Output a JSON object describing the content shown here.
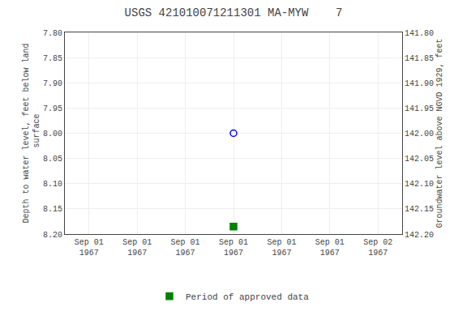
{
  "chart_data": {
    "type": "scatter",
    "title": "USGS 421010071211301 MA-MYW    7",
    "y_label": "Depth to water level, feet below land\n surface",
    "y2_label": "Groundwater level above NGVD 1929, feet",
    "categories": [
      "Sep 01\n1967",
      "Sep 01\n1967",
      "Sep 01\n1967",
      "Sep 01\n1967",
      "Sep 01\n1967",
      "Sep 01\n1967",
      "Sep 02\n1967"
    ],
    "series": [
      {
        "color": "blue",
        "marker": "circle-open",
        "values": [
          null,
          null,
          null,
          8.0,
          null,
          null,
          null
        ]
      },
      {
        "name": "Period of approved data",
        "color": "#008000",
        "marker": "square",
        "values": [
          null,
          null,
          null,
          8.185,
          null,
          null,
          null
        ]
      }
    ],
    "ylim": [
      8.2,
      7.8
    ],
    "yticks": [
      {
        "value": 7.8,
        "label": "7.80"
      },
      7.85,
      {
        "value": 7.9,
        "label": "7.90"
      },
      7.95,
      {
        "value": 8.0,
        "label": "8.00"
      },
      8.05,
      {
        "value": 8.1,
        "label": "8.10"
      },
      8.15,
      {
        "value": 8.2,
        "label": "8.20"
      }
    ],
    "y2lim": [
      142.2,
      141.8
    ],
    "y2ticks": [
      {
        "value": 141.8,
        "label": "141.80"
      },
      141.85,
      {
        "value": 141.9,
        "label": "141.90"
      },
      141.95,
      {
        "value": 142.0,
        "label": "142.00"
      },
      142.05,
      {
        "value": 142.1,
        "label": "142.10"
      },
      142.15,
      {
        "value": 142.2,
        "label": "142.20"
      }
    ],
    "grid": true,
    "legend": "bottom"
  }
}
